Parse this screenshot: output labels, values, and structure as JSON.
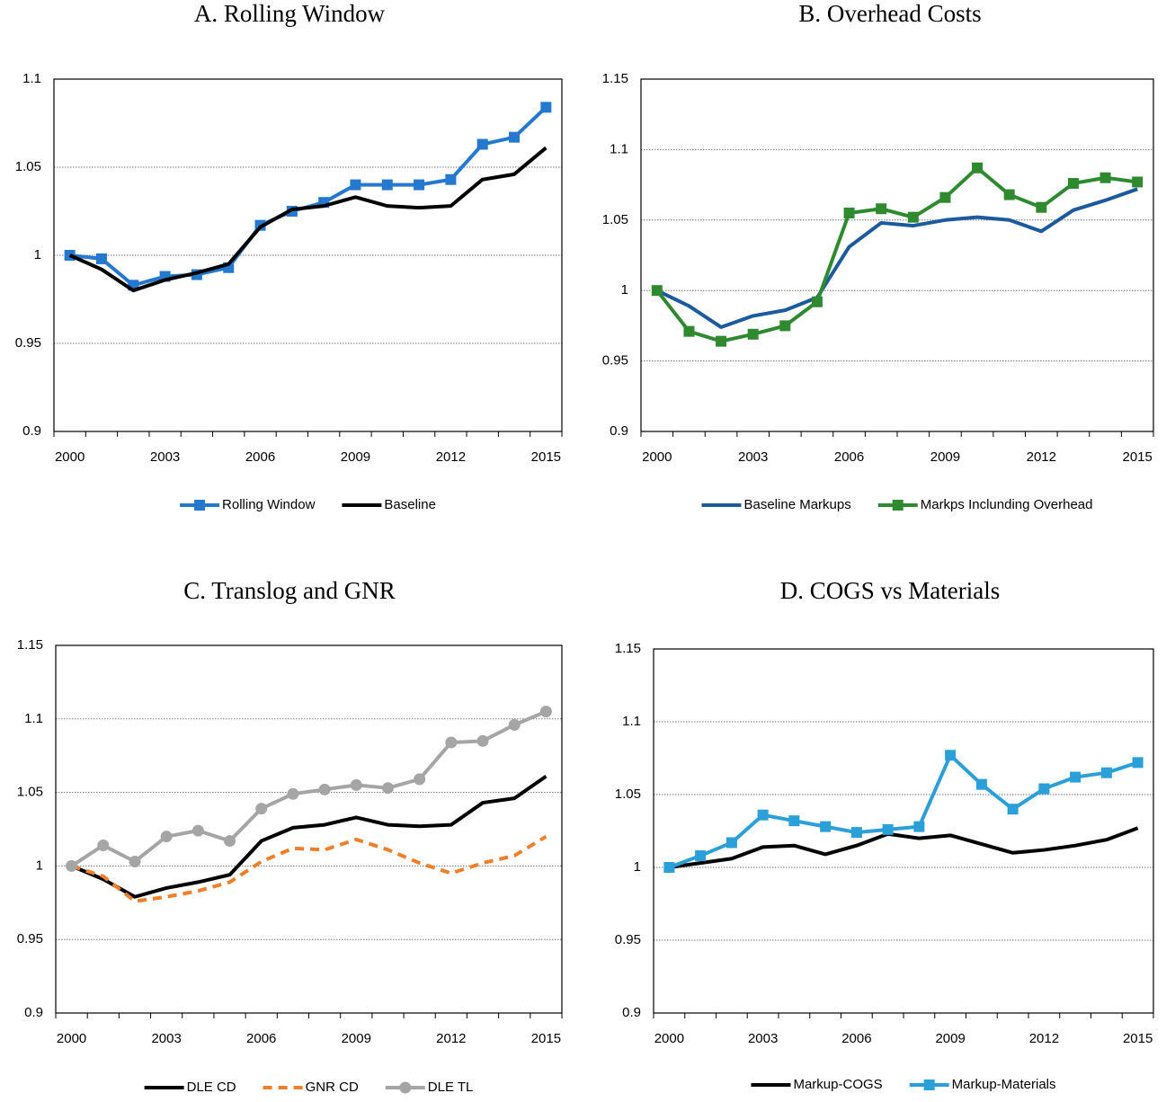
{
  "chart_data": [
    {
      "type": "line",
      "title": "A. Rolling Window",
      "categories": [
        "2000",
        null,
        null,
        "2003",
        null,
        null,
        "2006",
        null,
        null,
        "2009",
        null,
        null,
        "2012",
        null,
        null,
        "2015"
      ],
      "ylim": [
        0.9,
        1.1
      ],
      "yticks": [
        0.9,
        0.95,
        1,
        1.05,
        1.1
      ],
      "grid": true,
      "legend": "bottom",
      "series": [
        {
          "name": "Rolling Window",
          "color": "#2479cf",
          "marker": "square",
          "values": [
            1.0,
            0.998,
            0.983,
            0.988,
            0.989,
            0.993,
            1.017,
            1.025,
            1.03,
            1.04,
            1.04,
            1.04,
            1.043,
            1.063,
            1.067,
            1.084
          ]
        },
        {
          "name": "Baseline",
          "color": "#000000",
          "values": [
            1.0,
            0.992,
            0.98,
            0.986,
            0.99,
            0.995,
            1.016,
            1.026,
            1.028,
            1.033,
            1.028,
            1.027,
            1.028,
            1.043,
            1.046,
            1.061
          ]
        }
      ]
    },
    {
      "type": "line",
      "title": "B. Overhead Costs",
      "categories": [
        "2000",
        null,
        null,
        "2003",
        null,
        null,
        "2006",
        null,
        null,
        "2009",
        null,
        null,
        "2012",
        null,
        null,
        "2015"
      ],
      "ylim": [
        0.9,
        1.15
      ],
      "yticks": [
        0.9,
        0.95,
        1,
        1.05,
        1.1,
        1.15
      ],
      "grid": true,
      "legend": "bottom",
      "series": [
        {
          "name": "Baseline Markups",
          "color": "#1b5a9c",
          "values": [
            1.0,
            0.989,
            0.974,
            0.982,
            0.986,
            0.995,
            1.031,
            1.048,
            1.046,
            1.05,
            1.052,
            1.05,
            1.042,
            1.057,
            1.064,
            1.072
          ]
        },
        {
          "name": "Markps Inclunding Overhead",
          "color": "#2f8a2f",
          "marker": "square",
          "values": [
            1.0,
            0.971,
            0.964,
            0.969,
            0.975,
            0.992,
            1.055,
            1.058,
            1.052,
            1.066,
            1.087,
            1.068,
            1.059,
            1.076,
            1.08,
            1.077
          ]
        }
      ]
    },
    {
      "type": "line",
      "title": "C. Translog and GNR",
      "categories": [
        "2000",
        null,
        null,
        "2003",
        null,
        null,
        "2006",
        null,
        null,
        "2009",
        null,
        null,
        "2012",
        null,
        null,
        "2015"
      ],
      "ylim": [
        0.9,
        1.15
      ],
      "yticks": [
        0.9,
        0.95,
        1,
        1.05,
        1.1,
        1.15
      ],
      "grid": true,
      "legend": "bottom",
      "series": [
        {
          "name": "DLE CD",
          "color": "#000000",
          "values": [
            1.0,
            0.991,
            0.979,
            0.985,
            0.989,
            0.994,
            1.017,
            1.026,
            1.028,
            1.033,
            1.028,
            1.027,
            1.028,
            1.043,
            1.046,
            1.061
          ]
        },
        {
          "name": "GNR CD",
          "color": "#f07f2a",
          "dash": true,
          "values": [
            1.0,
            0.993,
            0.976,
            0.979,
            0.983,
            0.989,
            1.003,
            1.012,
            1.011,
            1.018,
            1.011,
            1.002,
            0.995,
            1.002,
            1.007,
            1.02
          ]
        },
        {
          "name": "DLE TL",
          "color": "#a5a5a5",
          "marker": "circle",
          "values": [
            1.0,
            1.014,
            1.003,
            1.02,
            1.024,
            1.017,
            1.039,
            1.049,
            1.052,
            1.055,
            1.053,
            1.059,
            1.084,
            1.085,
            1.096,
            1.105
          ]
        }
      ]
    },
    {
      "type": "line",
      "title": "D. COGS vs Materials",
      "categories": [
        "2000",
        null,
        null,
        "2003",
        null,
        null,
        "2006",
        null,
        null,
        "2009",
        null,
        null,
        "2012",
        null,
        null,
        "2015"
      ],
      "ylim": [
        0.9,
        1.15
      ],
      "yticks": [
        0.9,
        0.95,
        1,
        1.05,
        1.1,
        1.15
      ],
      "grid": true,
      "legend": "bottom",
      "series": [
        {
          "name": "Markup-COGS",
          "color": "#000000",
          "values": [
            1.0,
            1.003,
            1.006,
            1.014,
            1.015,
            1.009,
            1.015,
            1.023,
            1.02,
            1.022,
            1.016,
            1.01,
            1.012,
            1.015,
            1.019,
            1.027
          ]
        },
        {
          "name": "Markup-Materials",
          "color": "#2a9fd8",
          "marker": "square",
          "values": [
            1.0,
            1.008,
            1.017,
            1.036,
            1.032,
            1.028,
            1.024,
            1.026,
            1.028,
            1.077,
            1.057,
            1.04,
            1.054,
            1.062,
            1.065,
            1.072
          ]
        }
      ]
    }
  ]
}
